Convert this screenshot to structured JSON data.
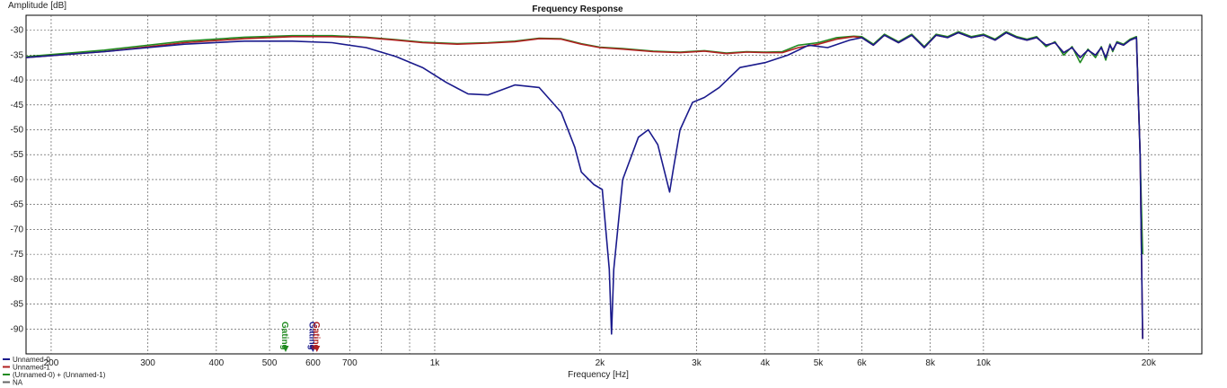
{
  "chart_data": {
    "type": "line",
    "title": "Frequency Response",
    "xlabel": "Frequency [Hz]",
    "ylabel": "Amplitude [dB]",
    "x_scale": "log",
    "xlim": [
      180,
      25000
    ],
    "ylim": [
      -95,
      -27
    ],
    "grid": true,
    "x_ticks": [
      {
        "value": 200,
        "label": "200"
      },
      {
        "value": 300,
        "label": "300"
      },
      {
        "value": 400,
        "label": "400"
      },
      {
        "value": 500,
        "label": "500"
      },
      {
        "value": 600,
        "label": "600"
      },
      {
        "value": 700,
        "label": "700"
      },
      {
        "value": 1000,
        "label": "1k"
      },
      {
        "value": 2000,
        "label": "2k"
      },
      {
        "value": 3000,
        "label": "3k"
      },
      {
        "value": 4000,
        "label": "4k"
      },
      {
        "value": 5000,
        "label": "5k"
      },
      {
        "value": 6000,
        "label": "6k"
      },
      {
        "value": 8000,
        "label": "8k"
      },
      {
        "value": 10000,
        "label": "10k"
      },
      {
        "value": 20000,
        "label": "20k"
      }
    ],
    "x_minor_gridlines": [
      800,
      900
    ],
    "y_ticks": [
      -30,
      -35,
      -40,
      -45,
      -50,
      -55,
      -60,
      -65,
      -70,
      -75,
      -80,
      -85,
      -90
    ],
    "legend_position": "bottom-left",
    "series": [
      {
        "name": "Unnamed-0",
        "color": "#1a1a8c",
        "x": [
          180,
          250,
          350,
          450,
          550,
          650,
          750,
          850,
          950,
          1050,
          1150,
          1250,
          1400,
          1550,
          1700,
          1800,
          1850,
          1950,
          2020,
          2080,
          2100,
          2120,
          2200,
          2350,
          2450,
          2550,
          2680,
          2720,
          2800,
          2950,
          3100,
          3300,
          3600,
          4000,
          4400,
          4800,
          5200,
          5700,
          6000,
          6300,
          6600,
          7000,
          7400,
          7800,
          8200,
          8600,
          9000,
          9500,
          10000,
          10500,
          11000,
          11500,
          12000,
          12500,
          13000,
          13500,
          14000,
          14500,
          15000,
          15500,
          16000,
          16400,
          16700,
          17000,
          17200,
          17500,
          18000,
          18500,
          19000,
          19300,
          19500
        ],
        "y": [
          -35.5,
          -34.3,
          -32.8,
          -32.2,
          -32.2,
          -32.5,
          -33.5,
          -35.3,
          -37.5,
          -40.5,
          -42.8,
          -43.0,
          -41.0,
          -41.5,
          -46.5,
          -53.5,
          -58.5,
          -61.0,
          -62.0,
          -78.0,
          -91.0,
          -78.0,
          -60.0,
          -51.5,
          -50.0,
          -53.0,
          -62.5,
          -58.0,
          -50.0,
          -44.5,
          -43.5,
          -41.5,
          -37.5,
          -36.5,
          -35.0,
          -33.0,
          -33.5,
          -32.0,
          -31.5,
          -33.0,
          -31.0,
          -32.5,
          -31.0,
          -33.5,
          -31.0,
          -31.5,
          -30.5,
          -31.5,
          -31.0,
          -32.0,
          -30.5,
          -31.5,
          -32.0,
          -31.5,
          -33.0,
          -32.5,
          -34.5,
          -33.5,
          -35.5,
          -34.0,
          -35.0,
          -33.5,
          -35.5,
          -33.0,
          -34.0,
          -32.5,
          -33.0,
          -32.0,
          -31.5,
          -55.0,
          -92.0
        ]
      },
      {
        "name": "Unnamed-1",
        "color": "#b02020",
        "x": [
          180,
          250,
          350,
          450,
          550,
          650,
          750,
          850,
          950,
          1100,
          1250,
          1400,
          1550,
          1700,
          1850,
          2000,
          2200,
          2500,
          2800,
          3100,
          3400,
          3700,
          4000,
          4300,
          4600,
          5000,
          5400,
          5800,
          6000,
          6300,
          6600,
          7000,
          7400,
          7800,
          8200,
          8600,
          9000,
          9500,
          10000,
          10500,
          11000,
          11500,
          12000,
          12500,
          13000,
          13500,
          14000,
          14500,
          15000,
          15500,
          16000,
          16400,
          16700,
          17000,
          17200,
          17500,
          18000,
          18500,
          19000,
          19300,
          19500
        ],
        "y": [
          -35.5,
          -34.3,
          -32.5,
          -31.7,
          -31.3,
          -31.3,
          -31.5,
          -32.0,
          -32.5,
          -32.8,
          -32.6,
          -32.3,
          -31.7,
          -31.8,
          -32.8,
          -33.5,
          -33.8,
          -34.3,
          -34.5,
          -34.2,
          -34.7,
          -34.4,
          -34.5,
          -34.5,
          -33.5,
          -32.8,
          -31.8,
          -31.3,
          -31.5,
          -33.0,
          -31.0,
          -32.5,
          -31.0,
          -33.5,
          -31.0,
          -31.5,
          -30.5,
          -31.5,
          -31.0,
          -32.0,
          -30.5,
          -31.5,
          -32.0,
          -31.5,
          -33.0,
          -32.5,
          -34.5,
          -33.5,
          -35.5,
          -34.0,
          -35.0,
          -33.5,
          -35.5,
          -33.0,
          -34.0,
          -32.5,
          -33.0,
          -32.0,
          -31.5,
          -55.0,
          -92.0
        ]
      },
      {
        "name": "(Unnamed-0) + (Unnamed-1)",
        "color": "#208a20",
        "x": [
          180,
          250,
          350,
          450,
          550,
          650,
          750,
          850,
          950,
          1100,
          1250,
          1400,
          1550,
          1700,
          1850,
          2000,
          2200,
          2500,
          2800,
          3100,
          3400,
          3700,
          4000,
          4300,
          4600,
          5000,
          5400,
          5800,
          6000,
          6300,
          6600,
          7000,
          7400,
          7800,
          8200,
          8600,
          9000,
          9500,
          10000,
          10500,
          11000,
          11500,
          12000,
          12500,
          13000,
          13500,
          14000,
          14500,
          15000,
          15500,
          16000,
          16400,
          16700,
          17000,
          17200,
          17500,
          18000,
          18500,
          19000,
          19300,
          19500
        ],
        "y": [
          -35.3,
          -34.0,
          -32.2,
          -31.4,
          -31.1,
          -31.1,
          -31.4,
          -31.9,
          -32.4,
          -32.7,
          -32.5,
          -32.2,
          -31.6,
          -31.7,
          -32.7,
          -33.4,
          -33.7,
          -34.2,
          -34.4,
          -34.1,
          -34.6,
          -34.3,
          -34.4,
          -34.3,
          -33.0,
          -32.5,
          -31.5,
          -31.2,
          -31.3,
          -32.8,
          -30.8,
          -32.3,
          -30.8,
          -33.3,
          -30.8,
          -31.3,
          -30.3,
          -31.3,
          -30.8,
          -31.8,
          -30.3,
          -31.3,
          -31.8,
          -31.3,
          -33.3,
          -32.3,
          -35.0,
          -33.3,
          -36.5,
          -33.8,
          -35.5,
          -33.3,
          -36.0,
          -32.8,
          -34.3,
          -32.3,
          -32.8,
          -31.8,
          -31.3,
          -55.0,
          -75.0
        ]
      },
      {
        "name": "NA",
        "color": "#666666",
        "x": [],
        "y": []
      }
    ],
    "markers": [
      {
        "label": "Gating",
        "x": 535,
        "color": "#208a20"
      },
      {
        "label": "Gating",
        "x": 600,
        "color": "#1a1a8c"
      },
      {
        "label": "Gating",
        "x": 610,
        "color": "#b02020"
      }
    ]
  }
}
